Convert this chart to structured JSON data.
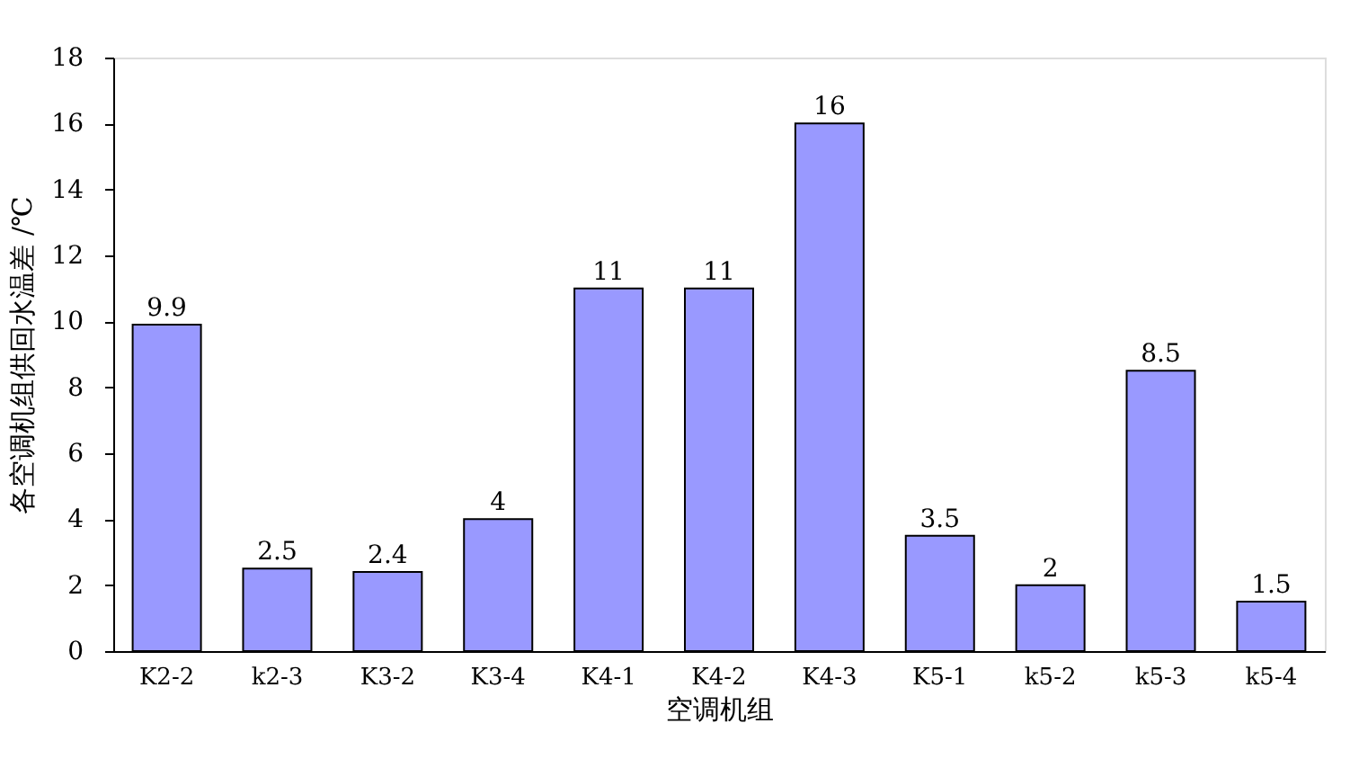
{
  "chart_data": {
    "type": "bar",
    "xlabel": "空调机组",
    "ylabel": "各空调机组供回水温差 /℃",
    "categories": [
      "K2-2",
      "k2-3",
      "K3-2",
      "K3-4",
      "K4-1",
      "K4-2",
      "K4-3",
      "K5-1",
      "k5-2",
      "k5-3",
      "k5-4"
    ],
    "values": [
      9.9,
      2.5,
      2.4,
      4,
      11,
      11,
      16,
      3.5,
      2,
      8.5,
      1.5
    ],
    "color": "#9999ff",
    "ylim": [
      0,
      18
    ],
    "yticks": [
      0,
      2,
      4,
      6,
      8,
      10,
      12,
      14,
      16,
      18
    ],
    "grid": false,
    "data_labels": true
  }
}
